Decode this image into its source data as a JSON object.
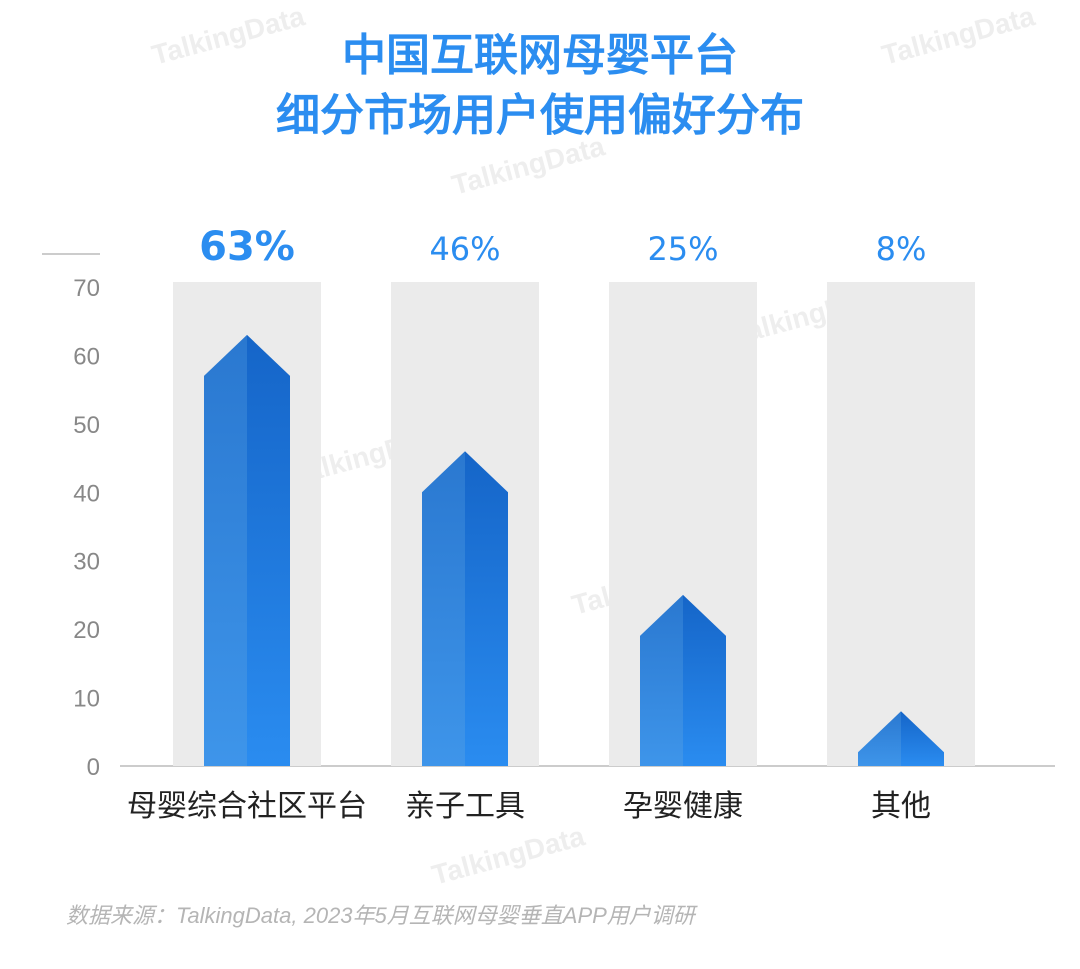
{
  "title_line1": "中国互联网母婴平台",
  "title_line2": "细分市场用户使用偏好分布",
  "watermark": "TalkingData",
  "source": "数据来源：TalkingData, 2023年5月互联网母婴垂直APP用户调研",
  "colors": {
    "title": "#2b8df0",
    "bar_dark": "#1565c8",
    "bar_light": "#3e95ea",
    "bar_bg": "#ebebeb",
    "axis_text": "#888888"
  },
  "chart_data": {
    "type": "bar",
    "categories": [
      "母婴综合社区平台",
      "亲子工具",
      "孕婴健康",
      "其他"
    ],
    "values": [
      63,
      46,
      25,
      8
    ],
    "data_labels": [
      "63%",
      "46%",
      "25%",
      "8%"
    ],
    "yticks": [
      "0",
      "10",
      "20",
      "30",
      "40",
      "50",
      "60",
      "70"
    ],
    "ylim": [
      0,
      70
    ],
    "grid": false
  }
}
